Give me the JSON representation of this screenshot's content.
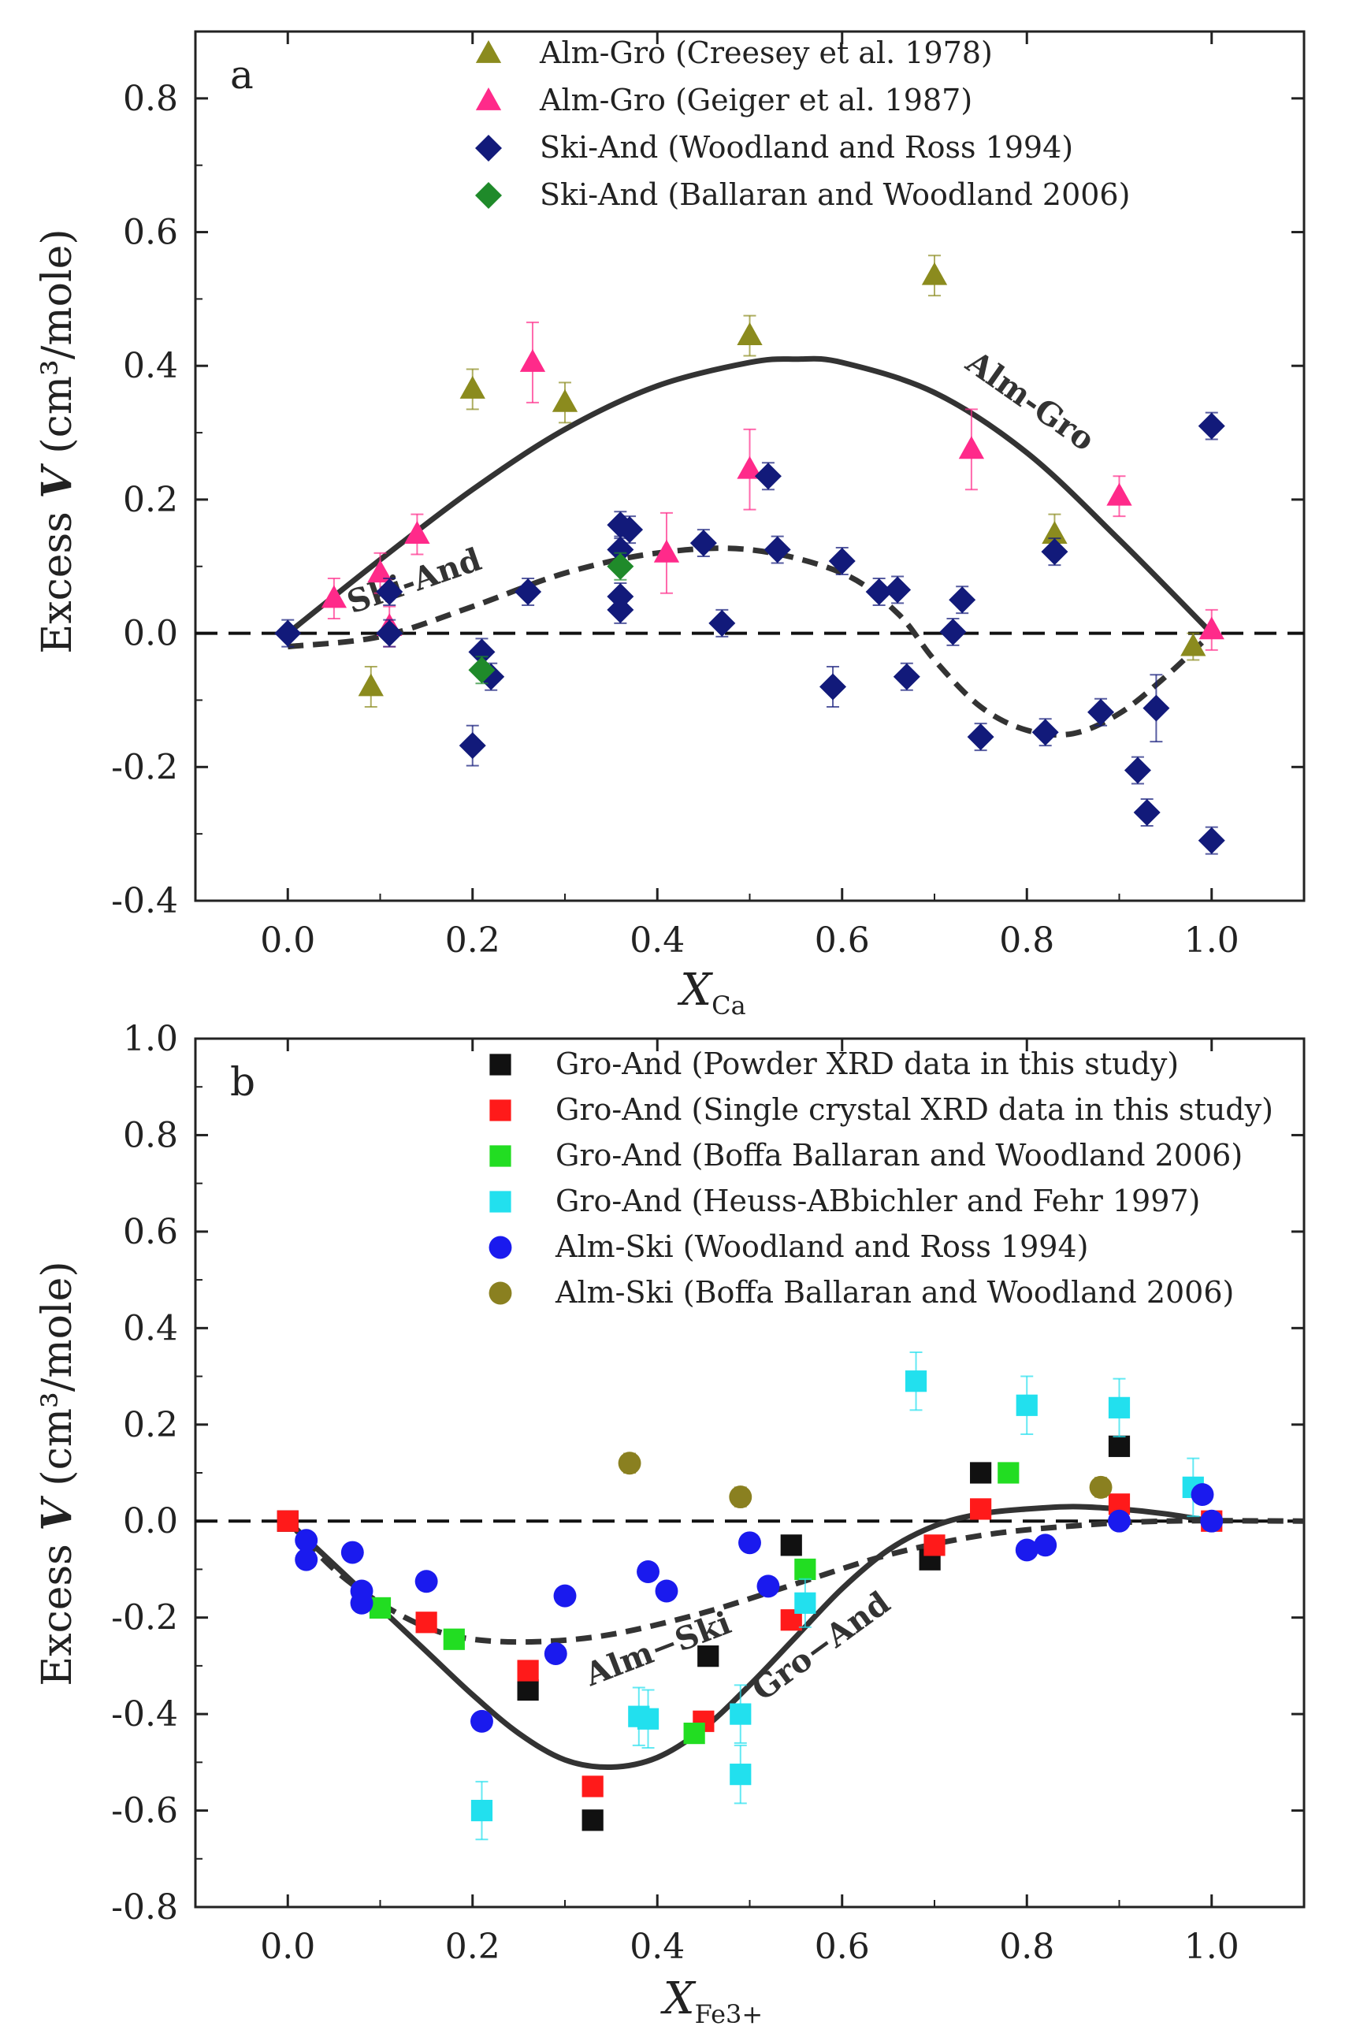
{
  "chart_data": [
    {
      "type": "scatter",
      "panel_label": "a",
      "xlabel": "X",
      "xlabel_sub": "Ca",
      "ylabel_pre": "Excess ",
      "ylabel_var": "V",
      "ylabel_post": " (cm³/mole)",
      "xlim": [
        -0.1,
        1.1
      ],
      "ylim": [
        -0.4,
        0.9
      ],
      "xticks": [
        0.0,
        0.2,
        0.4,
        0.6,
        0.8,
        1.0
      ],
      "xtick_labels": [
        "0.0",
        "0.2",
        "0.4",
        "0.6",
        "0.8",
        "1.0"
      ],
      "yticks": [
        -0.4,
        -0.2,
        0.0,
        0.2,
        0.4,
        0.6,
        0.8
      ],
      "ytick_labels": [
        "-0.4",
        "-0.2",
        "0.0",
        "0.2",
        "0.4",
        "0.6",
        "0.8"
      ],
      "zero_line": "dashed",
      "legend_placement": "top",
      "series": [
        {
          "name": "Alm-Gro (Creesey et al. 1978)",
          "marker": "triangle",
          "color": "#8b8b1e",
          "x": [
            0.09,
            0.2,
            0.3,
            0.5,
            0.7,
            0.83,
            0.98
          ],
          "y": [
            -0.08,
            0.365,
            0.345,
            0.445,
            0.535,
            0.148,
            -0.02
          ],
          "err": [
            0.03,
            0.03,
            0.03,
            0.03,
            0.03,
            0.03,
            0.02
          ]
        },
        {
          "name": "Alm-Gro (Geiger et al.  1987)",
          "marker": "triangle",
          "color": "#ff2a8a",
          "x": [
            0.05,
            0.1,
            0.11,
            0.14,
            0.265,
            0.41,
            0.5,
            0.74,
            0.9,
            1.0
          ],
          "y": [
            0.052,
            0.09,
            0.01,
            0.148,
            0.405,
            0.12,
            0.245,
            0.275,
            0.205,
            0.005
          ],
          "err": [
            0.03,
            0.03,
            0.03,
            0.03,
            0.06,
            0.06,
            0.06,
            0.06,
            0.03,
            0.03
          ]
        },
        {
          "name": "Ski-And (Woodland and Ross 1994)",
          "marker": "diamond",
          "color": "#121a7a",
          "x": [
            0.0,
            0.11,
            0.11,
            0.2,
            0.21,
            0.22,
            0.26,
            0.36,
            0.36,
            0.36,
            0.36,
            0.37,
            0.45,
            0.47,
            0.52,
            0.53,
            0.59,
            0.6,
            0.64,
            0.66,
            0.67,
            0.72,
            0.73,
            0.75,
            0.82,
            0.83,
            0.88,
            0.92,
            0.93,
            0.94,
            1.0,
            1.0
          ],
          "y": [
            0.0,
            0.062,
            0.0,
            -0.168,
            -0.028,
            -0.065,
            0.062,
            0.162,
            0.125,
            0.055,
            0.035,
            0.155,
            0.135,
            0.015,
            0.235,
            0.125,
            -0.08,
            0.108,
            0.062,
            0.065,
            -0.065,
            0.002,
            0.05,
            -0.155,
            -0.148,
            0.122,
            -0.118,
            -0.205,
            -0.268,
            -0.112,
            0.31,
            -0.31
          ],
          "err": [
            0.02,
            0.02,
            0.02,
            0.03,
            0.02,
            0.02,
            0.02,
            0.02,
            0.02,
            0.02,
            0.02,
            0.02,
            0.02,
            0.02,
            0.02,
            0.02,
            0.03,
            0.02,
            0.02,
            0.02,
            0.02,
            0.02,
            0.02,
            0.02,
            0.02,
            0.02,
            0.02,
            0.02,
            0.02,
            0.05,
            0.02,
            0.02
          ]
        },
        {
          "name": "Ski-And (Ballaran and Woodland 2006)",
          "marker": "diamond",
          "color": "#1f8a2a",
          "x": [
            0.21,
            0.36
          ],
          "y": [
            -0.055,
            0.1
          ],
          "err": [
            0.02,
            0.02
          ]
        }
      ],
      "curves": [
        {
          "name": "Alm-Gro",
          "style": "solid",
          "x": [
            0.0,
            0.1,
            0.2,
            0.3,
            0.4,
            0.5,
            0.55,
            0.6,
            0.7,
            0.8,
            0.9,
            1.0
          ],
          "y": [
            0.0,
            0.11,
            0.215,
            0.305,
            0.37,
            0.405,
            0.41,
            0.405,
            0.36,
            0.27,
            0.14,
            0.0
          ]
        },
        {
          "name": "Ski-And",
          "style": "dashed",
          "x": [
            0.0,
            0.1,
            0.2,
            0.3,
            0.4,
            0.5,
            0.6,
            0.66,
            0.7,
            0.75,
            0.8,
            0.85,
            0.9,
            0.95,
            1.0
          ],
          "y": [
            -0.02,
            -0.005,
            0.04,
            0.09,
            0.12,
            0.125,
            0.09,
            0.03,
            -0.04,
            -0.11,
            -0.145,
            -0.15,
            -0.12,
            -0.065,
            0.0
          ]
        }
      ],
      "curve_labels": {
        "Alm-Gro": "Alm-Gro",
        "Ski-And": "Ski-And"
      }
    },
    {
      "type": "scatter",
      "panel_label": "b",
      "xlabel": "X",
      "xlabel_sub": "Fe3+",
      "ylabel_pre": "Excess ",
      "ylabel_var": "V",
      "ylabel_post": " (cm³/mole)",
      "xlim": [
        -0.1,
        1.1
      ],
      "ylim": [
        -0.8,
        1.0
      ],
      "xticks": [
        0.0,
        0.2,
        0.4,
        0.6,
        0.8,
        1.0
      ],
      "xtick_labels": [
        "0.0",
        "0.2",
        "0.4",
        "0.6",
        "0.8",
        "1.0"
      ],
      "yticks": [
        -0.8,
        -0.6,
        -0.4,
        -0.2,
        0.0,
        0.2,
        0.4,
        0.6,
        0.8,
        1.0
      ],
      "ytick_labels": [
        "-0.8",
        "-0.6",
        "-0.4",
        "-0.2",
        "0.0",
        "0.2",
        "0.4",
        "0.6",
        "0.8",
        "1.0"
      ],
      "zero_line": "dashed",
      "legend_placement": "top",
      "series": [
        {
          "name": "Gro-And (Powder XRD data in this study)",
          "marker": "square",
          "color": "#111111",
          "x": [
            0.0,
            0.26,
            0.33,
            0.455,
            0.545,
            0.695,
            0.75,
            0.9
          ],
          "y": [
            0.0,
            -0.35,
            -0.62,
            -0.28,
            -0.05,
            -0.08,
            0.1,
            0.155
          ],
          "err": [
            0.01,
            0.02,
            0.02,
            0.02,
            0.02,
            0.02,
            0.02,
            0.02
          ]
        },
        {
          "name": "Gro-And (Single crystal XRD data in this study)",
          "marker": "square",
          "color": "#ff1a1a",
          "x": [
            0.0,
            0.15,
            0.26,
            0.33,
            0.45,
            0.545,
            0.7,
            0.75,
            0.9,
            1.0
          ],
          "y": [
            0.0,
            -0.21,
            -0.31,
            -0.55,
            -0.415,
            -0.205,
            -0.05,
            0.025,
            0.035,
            0.0
          ],
          "err": [
            0.01,
            0.02,
            0.02,
            0.02,
            0.02,
            0.02,
            0.02,
            0.02,
            0.02,
            0.02
          ]
        },
        {
          "name": "Gro-And (Boffa Ballaran and Woodland 2006)",
          "marker": "square",
          "color": "#22dd22",
          "x": [
            0.1,
            0.18,
            0.44,
            0.56,
            0.78
          ],
          "y": [
            -0.18,
            -0.245,
            -0.44,
            -0.1,
            0.1
          ],
          "err": [
            0.02,
            0.02,
            0.02,
            0.02,
            0.02
          ]
        },
        {
          "name": "Gro-And (Heuss-ABbichler and Fehr 1997)",
          "marker": "square",
          "color": "#22e0ee",
          "x": [
            0.21,
            0.38,
            0.39,
            0.49,
            0.49,
            0.56,
            0.68,
            0.8,
            0.9,
            0.98
          ],
          "y": [
            -0.6,
            -0.405,
            -0.41,
            -0.525,
            -0.4,
            -0.17,
            0.29,
            0.24,
            0.235,
            0.07
          ],
          "err": [
            0.06,
            0.06,
            0.06,
            0.06,
            0.06,
            0.05,
            0.06,
            0.06,
            0.06,
            0.06
          ]
        },
        {
          "name": "Alm-Ski (Woodland and Ross 1994)",
          "marker": "circle",
          "color": "#1a1aee",
          "x": [
            0.02,
            0.02,
            0.07,
            0.08,
            0.08,
            0.15,
            0.21,
            0.29,
            0.3,
            0.39,
            0.41,
            0.5,
            0.52,
            0.8,
            0.82,
            0.9,
            0.99,
            1.0
          ],
          "y": [
            -0.04,
            -0.08,
            -0.065,
            -0.145,
            -0.17,
            -0.125,
            -0.415,
            -0.275,
            -0.155,
            -0.105,
            -0.145,
            -0.045,
            -0.135,
            -0.06,
            -0.05,
            0.0,
            0.055,
            0.0
          ],
          "err": []
        },
        {
          "name": "Alm-Ski (Boffa Ballaran and Woodland 2006)",
          "marker": "circle",
          "color": "#8a8020",
          "x": [
            0.37,
            0.49,
            0.88
          ],
          "y": [
            0.12,
            0.05,
            0.07
          ],
          "err": [
            0.02,
            0.02,
            0.02
          ]
        }
      ],
      "curves": [
        {
          "name": "Gro-And",
          "style": "solid",
          "x": [
            0.0,
            0.05,
            0.1,
            0.15,
            0.2,
            0.25,
            0.3,
            0.35,
            0.4,
            0.45,
            0.5,
            0.55,
            0.6,
            0.65,
            0.7,
            0.75,
            0.8,
            0.85,
            0.9,
            0.95,
            1.0
          ],
          "y": [
            0.0,
            -0.09,
            -0.18,
            -0.27,
            -0.36,
            -0.44,
            -0.495,
            -0.51,
            -0.49,
            -0.43,
            -0.34,
            -0.24,
            -0.14,
            -0.06,
            -0.01,
            0.015,
            0.025,
            0.03,
            0.025,
            0.015,
            0.0
          ]
        },
        {
          "name": "Alm-Ski",
          "style": "dashed",
          "x": [
            0.0,
            0.05,
            0.1,
            0.15,
            0.2,
            0.27,
            0.35,
            0.45,
            0.55,
            0.65,
            0.75,
            0.85,
            0.95,
            1.1
          ],
          "y": [
            0.0,
            -0.1,
            -0.17,
            -0.22,
            -0.245,
            -0.25,
            -0.235,
            -0.19,
            -0.13,
            -0.07,
            -0.03,
            -0.01,
            0.0,
            0.0
          ]
        }
      ],
      "curve_labels": {
        "Gro-And": "Gro−And",
        "Alm-Ski": "Alm−Ski"
      }
    }
  ]
}
